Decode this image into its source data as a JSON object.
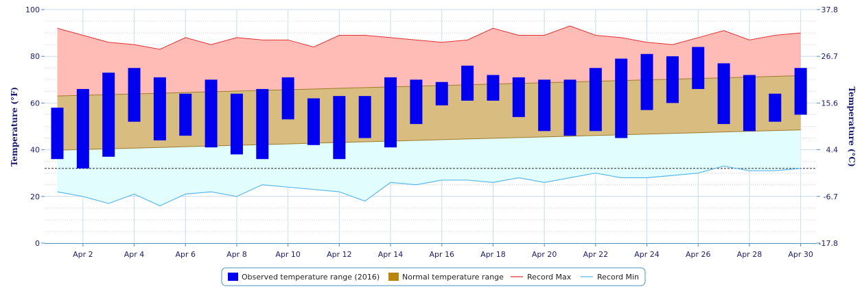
{
  "chart_data": {
    "type": "bar",
    "x_tick_labels": [
      "Apr 2",
      "Apr 4",
      "Apr 6",
      "Apr 8",
      "Apr 10",
      "Apr 12",
      "Apr 14",
      "Apr 16",
      "Apr 18",
      "Apr 20",
      "Apr 22",
      "Apr 24",
      "Apr 26",
      "Apr 28",
      "Apr 30"
    ],
    "y_left": {
      "label": "Temperature (°F)",
      "range": [
        0,
        100
      ],
      "ticks": [
        0,
        20,
        40,
        60,
        80,
        100
      ]
    },
    "y_right": {
      "label": "Temperature (°C)",
      "ticks": [
        "-17.8",
        "-6.7",
        "4.4",
        "15.6",
        "26.7",
        "37.8"
      ]
    },
    "freezing_line_f": 32,
    "days": [
      1,
      2,
      3,
      4,
      5,
      6,
      7,
      8,
      9,
      10,
      11,
      12,
      13,
      14,
      15,
      16,
      17,
      18,
      19,
      20,
      21,
      22,
      23,
      24,
      25,
      26,
      27,
      28,
      29,
      30
    ],
    "series": [
      {
        "name": "Observed temperature range (2016)",
        "color": "#0000ee",
        "low": [
          36,
          32,
          37,
          52,
          44,
          46,
          41,
          38,
          36,
          53,
          42,
          36,
          45,
          41,
          51,
          59,
          61,
          61,
          54,
          48,
          46,
          48,
          45,
          57,
          60,
          66,
          51,
          48,
          52,
          55
        ],
        "high": [
          58,
          66,
          73,
          75,
          71,
          64,
          70,
          64,
          66,
          71,
          62,
          63,
          63,
          71,
          70,
          69,
          76,
          72,
          71,
          70,
          70,
          75,
          79,
          81,
          80,
          84,
          77,
          72,
          64,
          75
        ]
      },
      {
        "name": "Normal temperature range",
        "color": "#b8860b",
        "low": [
          39.8,
          40.1,
          40.4,
          40.7,
          41.0,
          41.3,
          41.6,
          41.9,
          42.2,
          42.5,
          42.8,
          43.1,
          43.4,
          43.7,
          44.0,
          44.3,
          44.6,
          44.9,
          45.2,
          45.5,
          45.8,
          46.1,
          46.4,
          46.7,
          47.0,
          47.3,
          47.6,
          47.9,
          48.2,
          48.5
        ],
        "high": [
          63.0,
          63.3,
          63.6,
          63.9,
          64.2,
          64.5,
          64.8,
          65.1,
          65.4,
          65.7,
          66.0,
          66.3,
          66.6,
          66.9,
          67.2,
          67.5,
          67.8,
          68.1,
          68.4,
          68.7,
          69.0,
          69.3,
          69.6,
          69.9,
          70.2,
          70.5,
          70.8,
          71.1,
          71.4,
          71.7
        ]
      },
      {
        "name": "Record Max",
        "color": "#e03030",
        "values": [
          92,
          89,
          86,
          85,
          83,
          88,
          85,
          88,
          87,
          87,
          84,
          89,
          89,
          88,
          87,
          86,
          87,
          92,
          89,
          89,
          93,
          89,
          88,
          86,
          85,
          88,
          91,
          87,
          89,
          90
        ]
      },
      {
        "name": "Record Min",
        "color": "#5bb8ee",
        "values": [
          22,
          20,
          17,
          21,
          16,
          21,
          22,
          20,
          25,
          24,
          23,
          22,
          18,
          26,
          25,
          27,
          27,
          26,
          28,
          26,
          28,
          30,
          28,
          28,
          29,
          30,
          33,
          31,
          31,
          32
        ]
      }
    ],
    "legend_position": "bottom-center",
    "grid": true
  }
}
